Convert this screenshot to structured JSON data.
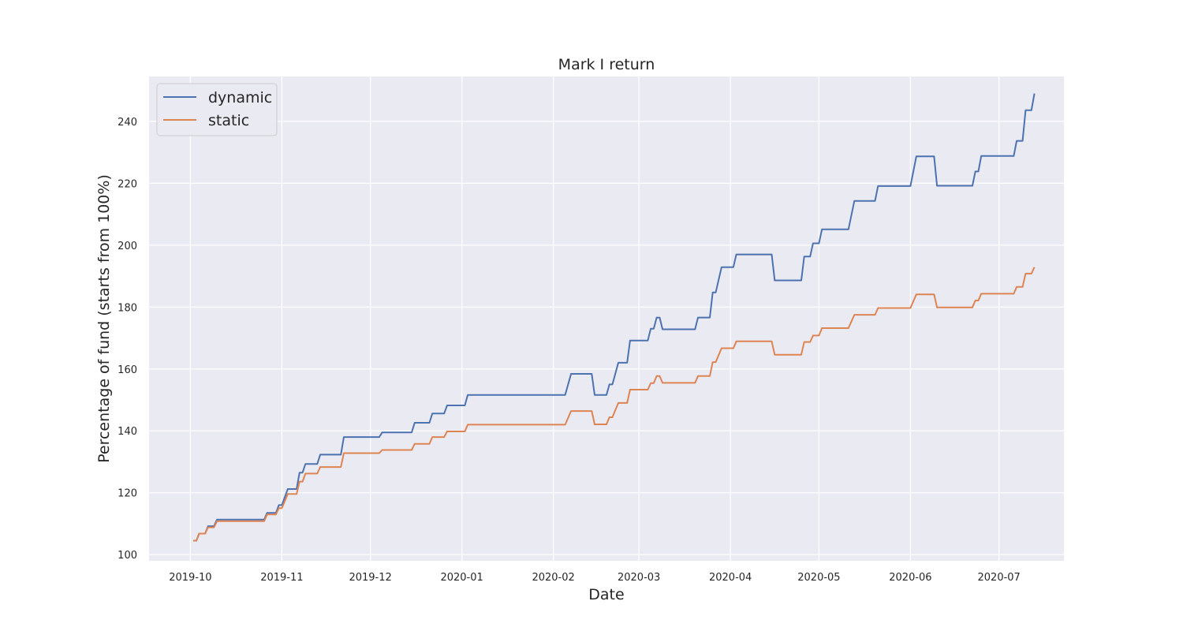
{
  "chart_data": {
    "type": "line",
    "title": "Mark I return",
    "xlabel": "Date",
    "ylabel": "Percentage of fund (starts from 100%)",
    "x_ticks": [
      "2019-10",
      "2019-11",
      "2019-12",
      "2020-01",
      "2020-02",
      "2020-03",
      "2020-04",
      "2020-05",
      "2020-06",
      "2020-07"
    ],
    "y_ticks": [
      100,
      120,
      140,
      160,
      180,
      200,
      220,
      240
    ],
    "xlim": [
      "2019-09-17",
      "2020-07-23"
    ],
    "ylim": [
      98,
      254.5
    ],
    "grid": true,
    "legend_placement": "top-left",
    "colors": {
      "background": "#eaeaf2",
      "grid": "#ffffff"
    },
    "series": [
      {
        "name": "dynamic",
        "color": "#4c72b0",
        "points": [
          [
            "2019-10-02",
            104.5
          ],
          [
            "2019-10-03",
            104.5
          ],
          [
            "2019-10-04",
            106.8
          ],
          [
            "2019-10-06",
            106.8
          ],
          [
            "2019-10-07",
            109.2
          ],
          [
            "2019-10-09",
            109.2
          ],
          [
            "2019-10-10",
            111.3
          ],
          [
            "2019-10-26",
            111.3
          ],
          [
            "2019-10-27",
            113.5
          ],
          [
            "2019-10-30",
            113.5
          ],
          [
            "2019-10-31",
            116.0
          ],
          [
            "2019-11-01",
            116.0
          ],
          [
            "2019-11-03",
            121.2
          ],
          [
            "2019-11-06",
            121.2
          ],
          [
            "2019-11-07",
            126.5
          ],
          [
            "2019-11-08",
            126.5
          ],
          [
            "2019-11-09",
            129.3
          ],
          [
            "2019-11-13",
            129.3
          ],
          [
            "2019-11-14",
            132.3
          ],
          [
            "2019-11-21",
            132.3
          ],
          [
            "2019-11-22",
            138.0
          ],
          [
            "2019-12-04",
            138.0
          ],
          [
            "2019-12-05",
            139.5
          ],
          [
            "2019-12-15",
            139.5
          ],
          [
            "2019-12-16",
            142.6
          ],
          [
            "2019-12-21",
            142.6
          ],
          [
            "2019-12-22",
            145.6
          ],
          [
            "2019-12-26",
            145.6
          ],
          [
            "2019-12-27",
            148.2
          ],
          [
            "2020-01-02",
            148.2
          ],
          [
            "2020-01-03",
            151.6
          ],
          [
            "2020-02-05",
            151.6
          ],
          [
            "2020-02-07",
            158.4
          ],
          [
            "2020-02-14",
            158.4
          ],
          [
            "2020-02-15",
            151.6
          ],
          [
            "2020-02-19",
            151.6
          ],
          [
            "2020-02-20",
            155.0
          ],
          [
            "2020-02-21",
            155.0
          ],
          [
            "2020-02-23",
            162.0
          ],
          [
            "2020-02-26",
            162.0
          ],
          [
            "2020-02-27",
            169.2
          ],
          [
            "2020-03-04",
            169.2
          ],
          [
            "2020-03-05",
            173.0
          ],
          [
            "2020-03-06",
            173.0
          ],
          [
            "2020-03-07",
            176.6
          ],
          [
            "2020-03-08",
            176.6
          ],
          [
            "2020-03-09",
            172.8
          ],
          [
            "2020-03-20",
            172.8
          ],
          [
            "2020-03-21",
            176.6
          ],
          [
            "2020-03-25",
            176.6
          ],
          [
            "2020-03-26",
            184.7
          ],
          [
            "2020-03-27",
            184.7
          ],
          [
            "2020-03-29",
            192.9
          ],
          [
            "2020-04-02",
            192.9
          ],
          [
            "2020-04-03",
            197.0
          ],
          [
            "2020-04-15",
            197.0
          ],
          [
            "2020-04-16",
            188.6
          ],
          [
            "2020-04-25",
            188.6
          ],
          [
            "2020-04-26",
            196.3
          ],
          [
            "2020-04-28",
            196.3
          ],
          [
            "2020-04-29",
            200.6
          ],
          [
            "2020-05-01",
            200.6
          ],
          [
            "2020-05-02",
            205.1
          ],
          [
            "2020-05-11",
            205.1
          ],
          [
            "2020-05-13",
            214.3
          ],
          [
            "2020-05-20",
            214.3
          ],
          [
            "2020-05-21",
            219.1
          ],
          [
            "2020-06-01",
            219.1
          ],
          [
            "2020-06-03",
            228.7
          ],
          [
            "2020-06-09",
            228.7
          ],
          [
            "2020-06-10",
            219.2
          ],
          [
            "2020-06-22",
            219.2
          ],
          [
            "2020-06-23",
            223.8
          ],
          [
            "2020-06-24",
            223.8
          ],
          [
            "2020-06-25",
            228.8
          ],
          [
            "2020-07-06",
            228.8
          ],
          [
            "2020-07-07",
            233.7
          ],
          [
            "2020-07-09",
            233.7
          ],
          [
            "2020-07-10",
            243.6
          ],
          [
            "2020-07-12",
            243.6
          ],
          [
            "2020-07-13",
            249.0
          ]
        ]
      },
      {
        "name": "static",
        "color": "#dd8452",
        "points": [
          [
            "2019-10-02",
            104.5
          ],
          [
            "2019-10-03",
            104.5
          ],
          [
            "2019-10-04",
            106.8
          ],
          [
            "2019-10-06",
            106.8
          ],
          [
            "2019-10-07",
            108.8
          ],
          [
            "2019-10-09",
            108.8
          ],
          [
            "2019-10-10",
            110.8
          ],
          [
            "2019-10-26",
            110.8
          ],
          [
            "2019-10-27",
            113.0
          ],
          [
            "2019-10-30",
            113.0
          ],
          [
            "2019-10-31",
            115.0
          ],
          [
            "2019-11-01",
            115.0
          ],
          [
            "2019-11-03",
            119.6
          ],
          [
            "2019-11-06",
            119.6
          ],
          [
            "2019-11-07",
            123.6
          ],
          [
            "2019-11-08",
            123.6
          ],
          [
            "2019-11-09",
            126.2
          ],
          [
            "2019-11-13",
            126.2
          ],
          [
            "2019-11-14",
            128.3
          ],
          [
            "2019-11-21",
            128.3
          ],
          [
            "2019-11-22",
            132.8
          ],
          [
            "2019-12-04",
            132.8
          ],
          [
            "2019-12-05",
            133.8
          ],
          [
            "2019-12-15",
            133.8
          ],
          [
            "2019-12-16",
            135.8
          ],
          [
            "2019-12-21",
            135.8
          ],
          [
            "2019-12-22",
            138.0
          ],
          [
            "2019-12-26",
            138.0
          ],
          [
            "2019-12-27",
            139.8
          ],
          [
            "2020-01-02",
            139.8
          ],
          [
            "2020-01-03",
            142.0
          ],
          [
            "2020-02-05",
            142.0
          ],
          [
            "2020-02-07",
            146.4
          ],
          [
            "2020-02-14",
            146.4
          ],
          [
            "2020-02-15",
            142.1
          ],
          [
            "2020-02-19",
            142.1
          ],
          [
            "2020-02-20",
            144.4
          ],
          [
            "2020-02-21",
            144.4
          ],
          [
            "2020-02-23",
            149.0
          ],
          [
            "2020-02-26",
            149.0
          ],
          [
            "2020-02-27",
            153.3
          ],
          [
            "2020-03-04",
            153.3
          ],
          [
            "2020-03-05",
            155.4
          ],
          [
            "2020-03-06",
            155.4
          ],
          [
            "2020-03-07",
            157.7
          ],
          [
            "2020-03-08",
            157.7
          ],
          [
            "2020-03-09",
            155.5
          ],
          [
            "2020-03-20",
            155.5
          ],
          [
            "2020-03-21",
            157.7
          ],
          [
            "2020-03-25",
            157.7
          ],
          [
            "2020-03-26",
            162.2
          ],
          [
            "2020-03-27",
            162.2
          ],
          [
            "2020-03-29",
            166.7
          ],
          [
            "2020-04-02",
            166.7
          ],
          [
            "2020-04-03",
            168.9
          ],
          [
            "2020-04-15",
            168.9
          ],
          [
            "2020-04-16",
            164.6
          ],
          [
            "2020-04-25",
            164.6
          ],
          [
            "2020-04-26",
            168.7
          ],
          [
            "2020-04-28",
            168.7
          ],
          [
            "2020-04-29",
            170.8
          ],
          [
            "2020-05-01",
            170.8
          ],
          [
            "2020-05-02",
            173.2
          ],
          [
            "2020-05-11",
            173.2
          ],
          [
            "2020-05-13",
            177.5
          ],
          [
            "2020-05-20",
            177.5
          ],
          [
            "2020-05-21",
            179.7
          ],
          [
            "2020-06-01",
            179.7
          ],
          [
            "2020-06-03",
            184.1
          ],
          [
            "2020-06-09",
            184.1
          ],
          [
            "2020-06-10",
            179.9
          ],
          [
            "2020-06-22",
            179.9
          ],
          [
            "2020-06-23",
            182.1
          ],
          [
            "2020-06-24",
            182.1
          ],
          [
            "2020-06-25",
            184.3
          ],
          [
            "2020-07-06",
            184.3
          ],
          [
            "2020-07-07",
            186.5
          ],
          [
            "2020-07-09",
            186.5
          ],
          [
            "2020-07-10",
            190.8
          ],
          [
            "2020-07-12",
            190.8
          ],
          [
            "2020-07-13",
            192.9
          ]
        ]
      }
    ]
  }
}
